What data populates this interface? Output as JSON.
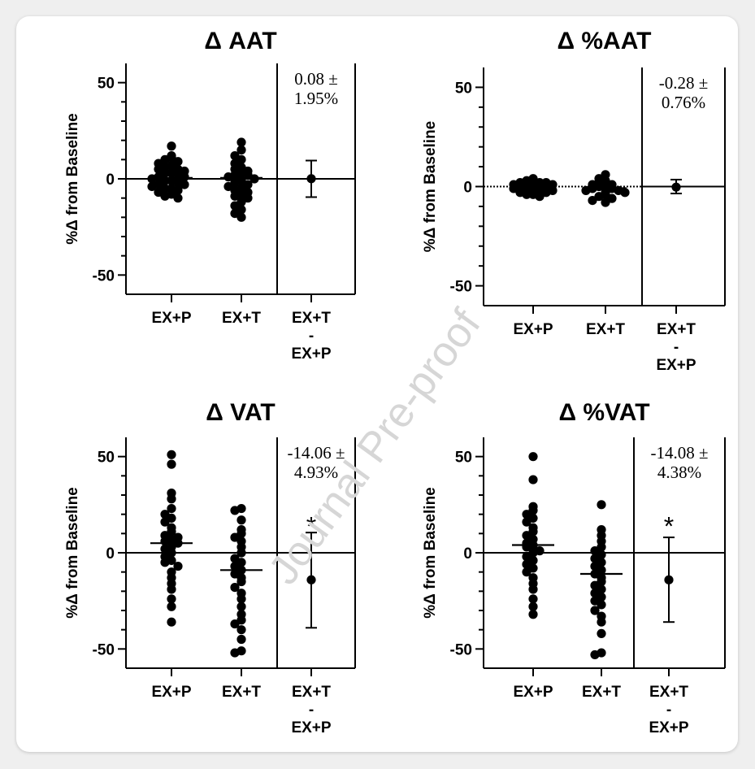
{
  "watermark": "Journal Pre-proof",
  "chart_data": [
    {
      "type": "scatter",
      "title": "Δ  AAT",
      "ylabel": "%Δ from Baseline",
      "ylim": [
        -60,
        60
      ],
      "yticks": [
        50,
        0,
        -50
      ],
      "ytick_labels": [
        "50",
        "0",
        "-50"
      ],
      "categories": [
        "EX+P",
        "EX+T"
      ],
      "diff_label": [
        "EX+T",
        "-",
        "EX+P"
      ],
      "annotation": [
        "0.08 ±",
        "1.95%"
      ],
      "zero_line": "solid",
      "significance": "",
      "series": [
        {
          "category": "EX+P",
          "mean": 0.5,
          "values": [
            17,
            12,
            11,
            10,
            9,
            8,
            7,
            6,
            5,
            5,
            4,
            3,
            3,
            2,
            1,
            1,
            0,
            -1,
            -1,
            -2,
            -3,
            -3,
            -4,
            -5,
            -5,
            -6,
            -7,
            -8,
            -9,
            -10
          ]
        },
        {
          "category": "EX+T",
          "mean": 0.5,
          "values": [
            19,
            15,
            12,
            10,
            8,
            6,
            5,
            4,
            3,
            2,
            2,
            1,
            0,
            -1,
            -2,
            -3,
            -4,
            -5,
            -6,
            -7,
            -8,
            -9,
            -10,
            -12,
            -14,
            -16,
            -18,
            -20
          ]
        }
      ],
      "difference": {
        "estimate": 0.08,
        "ci": [
          -9.5,
          9.5
        ]
      }
    },
    {
      "type": "scatter",
      "title": "Δ  %AAT",
      "ylabel": "%Δ from Baseline",
      "ylim": [
        -60,
        60
      ],
      "yticks": [
        50,
        0,
        -50
      ],
      "ytick_labels": [
        "50",
        "0",
        "-50"
      ],
      "categories": [
        "EX+P",
        "EX+T"
      ],
      "diff_label": [
        "EX+T",
        "-",
        "EX+P"
      ],
      "annotation": [
        "-0.28 ±",
        "0.76%"
      ],
      "zero_line": "dotted",
      "significance": "",
      "series": [
        {
          "category": "EX+P",
          "mean": -0.5,
          "values": [
            4,
            3,
            3,
            2,
            2,
            2,
            1,
            1,
            1,
            0,
            0,
            0,
            -1,
            -1,
            -1,
            -2,
            -2,
            -2,
            -3,
            -3,
            -3,
            -4,
            -4,
            -5
          ]
        },
        {
          "category": "EX+T",
          "mean": -0.8,
          "values": [
            6,
            4,
            3,
            2,
            1,
            1,
            0,
            0,
            -1,
            -1,
            -2,
            -2,
            -3,
            -3,
            -4,
            -5,
            -6,
            -7,
            -8
          ]
        }
      ],
      "difference": {
        "estimate": -0.28,
        "ci": [
          -3.5,
          3.5
        ]
      }
    },
    {
      "type": "scatter",
      "title": "Δ  VAT",
      "ylabel": "%Δ from Baseline",
      "ylim": [
        -60,
        60
      ],
      "yticks": [
        50,
        0,
        -50
      ],
      "ytick_labels": [
        "50",
        "0",
        "-50"
      ],
      "categories": [
        "EX+P",
        "EX+T"
      ],
      "diff_label": [
        "EX+T",
        "-",
        "EX+P"
      ],
      "annotation": [
        "-14.06 ±",
        "4.93%"
      ],
      "zero_line": "solid",
      "significance": "*",
      "series": [
        {
          "category": "EX+P",
          "mean": 5,
          "values": [
            51,
            46,
            31,
            28,
            23,
            20,
            18,
            16,
            13,
            11,
            9,
            8,
            7,
            6,
            5,
            3,
            2,
            0,
            -2,
            -4,
            -5,
            -7,
            -10,
            -13,
            -16,
            -19,
            -24,
            -28,
            -36
          ]
        },
        {
          "category": "EX+T",
          "mean": -9,
          "values": [
            23,
            22,
            17,
            12,
            10,
            8,
            6,
            3,
            0,
            -3,
            -5,
            -7,
            -9,
            -11,
            -13,
            -15,
            -18,
            -21,
            -24,
            -28,
            -32,
            -35,
            -37,
            -40,
            -45,
            -51,
            -52
          ]
        }
      ],
      "difference": {
        "estimate": -14.06,
        "ci": [
          -39,
          10.5
        ]
      }
    },
    {
      "type": "scatter",
      "title": "Δ  %VAT",
      "ylabel": "%Δ from Baseline",
      "ylim": [
        -60,
        60
      ],
      "yticks": [
        50,
        0,
        -50
      ],
      "ytick_labels": [
        "50",
        "0",
        "-50"
      ],
      "categories": [
        "EX+P",
        "EX+T"
      ],
      "diff_label": [
        "EX+T",
        "-",
        "EX+P"
      ],
      "annotation": [
        "-14.08 ±",
        "4.38%"
      ],
      "zero_line": "solid",
      "significance": "*",
      "series": [
        {
          "category": "EX+P",
          "mean": 4,
          "values": [
            50,
            38,
            24,
            22,
            20,
            18,
            16,
            13,
            11,
            9,
            7,
            5,
            4,
            3,
            1,
            0,
            -2,
            -4,
            -6,
            -8,
            -10,
            -13,
            -16,
            -19,
            -24,
            -28,
            -32
          ]
        },
        {
          "category": "EX+T",
          "mean": -11,
          "values": [
            25,
            12,
            9,
            6,
            3,
            1,
            -1,
            -3,
            -5,
            -7,
            -9,
            -11,
            -13,
            -15,
            -17,
            -19,
            -21,
            -23,
            -25,
            -27,
            -30,
            -33,
            -36,
            -42,
            -52,
            -53
          ]
        }
      ],
      "difference": {
        "estimate": -14.08,
        "ci": [
          -36,
          8
        ]
      }
    }
  ]
}
